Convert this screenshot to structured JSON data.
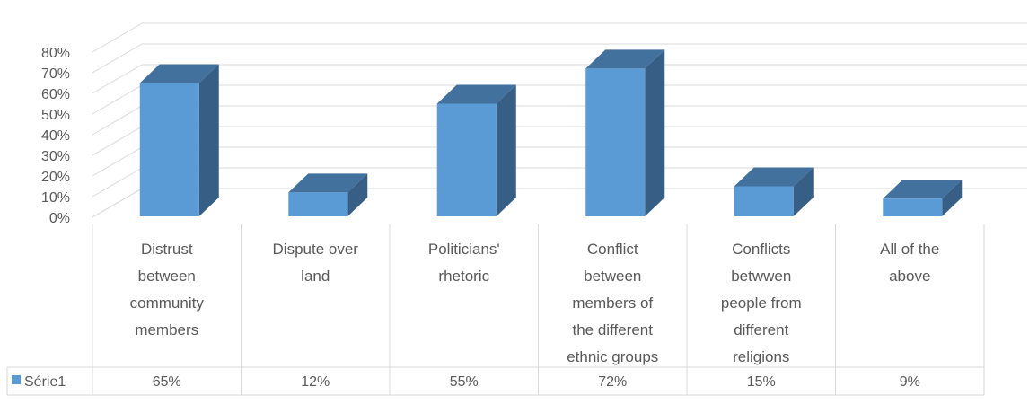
{
  "chart_data": {
    "type": "bar",
    "style": "3d-clustered-column-with-data-table",
    "categories": [
      "Distrust between community members",
      "Dispute over land",
      "Politicians' rhetoric",
      "Conflict between members of the different ethnic groups",
      "Conflicts betwwen people from different religions",
      "All of the above"
    ],
    "category_label_lines": [
      [
        "Distrust",
        "between",
        "community",
        "members"
      ],
      [
        "Dispute over",
        "land"
      ],
      [
        "Politicians'",
        "rhetoric"
      ],
      [
        "Conflict",
        "between",
        "members of",
        "the different",
        "ethnic groups"
      ],
      [
        "Conflicts",
        "betwwen",
        "people from",
        "different",
        "religions"
      ],
      [
        "All of the",
        "above"
      ]
    ],
    "series": [
      {
        "name": "Série1",
        "values": [
          0.65,
          0.12,
          0.55,
          0.72,
          0.15,
          0.09
        ]
      }
    ],
    "data_table_values": [
      "65%",
      "12%",
      "55%",
      "72%",
      "15%",
      "9%"
    ],
    "y_ticks": [
      "0%",
      "10%",
      "20%",
      "30%",
      "40%",
      "50%",
      "60%",
      "70%",
      "80%"
    ],
    "ylim": [
      0,
      0.8
    ],
    "grid": true,
    "legend": "data-table",
    "colors": {
      "bar_front": "#5b9bd5",
      "bar_top": "#41719c",
      "bar_side": "#375f86",
      "grid": "#d9d9d9",
      "text": "#595959"
    }
  }
}
